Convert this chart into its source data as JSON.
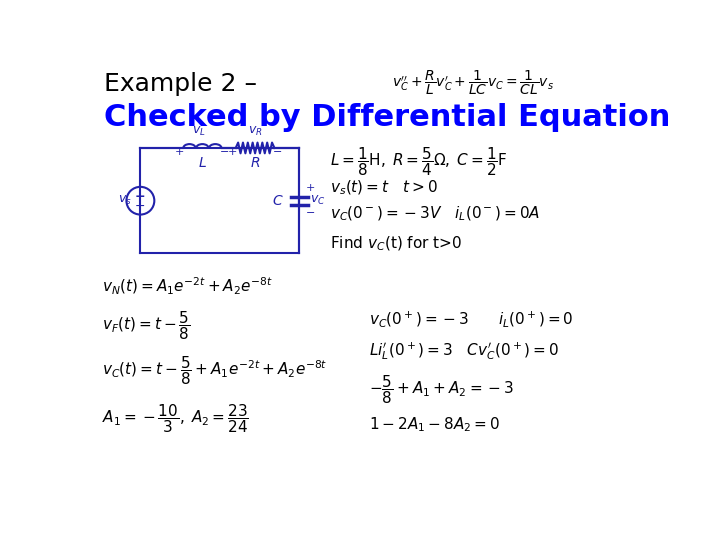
{
  "background_color": "#ffffff",
  "title_black": "Example 2 – ",
  "title_blue": "Checked by Differential Equation",
  "top_right_eq": "$v_C^{\\prime\\prime}+\\dfrac{R}{L}v_C^{\\prime}+\\dfrac{1}{LC}v_C=\\dfrac{1}{CL}v_s$",
  "params_eq": "$L=\\dfrac{1}{8}\\mathrm{H},\\; R=\\dfrac{5}{4}\\Omega,\\; C=\\dfrac{1}{2}\\mathrm{F}$",
  "vs_eq": "$v_s(t)=t \\quad t>0$",
  "ic_eq": "$v_C\\left(0^-\\right)=-3V \\quad i_L\\left(0^-\\right)=0A$",
  "find_text": "Find $v_C$(t) for t>0",
  "vN_eq": "$v_N(t)=A_1e^{-2t}+A_2e^{-8t}$",
  "vF_eq": "$v_F(t)=t-\\dfrac{5}{8}$",
  "vC_eq": "$v_C(t)=t-\\dfrac{5}{8}+A_1e^{-2t}+A_2e^{-8t}$",
  "A_eq": "$A_1=-\\dfrac{10}{3},\\;A_2=\\dfrac{23}{24}$",
  "vC_plus_eq": "$v_C\\left(0^+\\right)=-3 \\qquad i_L\\left(0^+\\right)=0$",
  "LiL_eq": "$Li_L^{\\prime}\\left(0^+\\right)=3 \\quad Cv_C^{\\prime}\\left(0^+\\right)=0$",
  "alg1_eq": "$-\\dfrac{5}{8}+A_1+A_2=-3$",
  "alg2_eq": "$1-2A_1-8A_2=0$",
  "title_black_fontsize": 18,
  "title_blue_fontsize": 22,
  "eq_fontsize": 11,
  "circuit_color": "#2222AA"
}
